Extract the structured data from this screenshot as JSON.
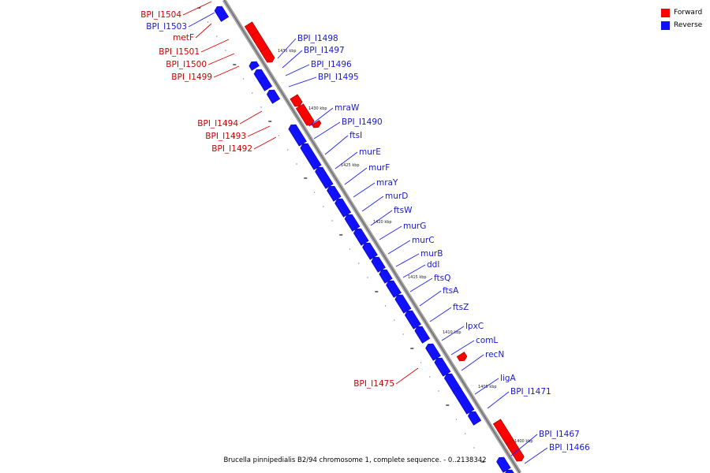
{
  "legend": {
    "forward_label": "Forward",
    "reverse_label": "Reverse",
    "forward_color": "#ff0000",
    "reverse_color": "#1010ff"
  },
  "caption": "Brucella pinnipedialis B2/94 chromosome 1, complete sequence. - 0..2138342",
  "ticks": [
    "1435 kbp",
    "1430 kbp",
    "1425 kbp",
    "1420 kbp",
    "1415 kbp",
    "1410 kbp",
    "1405 kbp",
    "1400 kbp"
  ],
  "forward_labels": [
    "BPI_I1504",
    "metF",
    "BPI_I1501",
    "BPI_I1500",
    "BPI_I1499",
    "BPI_I1494",
    "BPI_I1493",
    "BPI_I1492",
    "BPI_I1475"
  ],
  "reverse_labels": [
    "BPI_I1503",
    "BPI_I1498",
    "BPI_I1497",
    "BPI_I1496",
    "BPI_I1495",
    "mraW",
    "BPI_I1490",
    "ftsI",
    "murE",
    "murF",
    "mraY",
    "murD",
    "ftsW",
    "murG",
    "murC",
    "murB",
    "ddl",
    "ftsQ",
    "ftsA",
    "ftsZ",
    "lpxC",
    "comL",
    "recN",
    "ligA",
    "BPI_I1471",
    "BPI_I1467",
    "BPI_I1466"
  ]
}
